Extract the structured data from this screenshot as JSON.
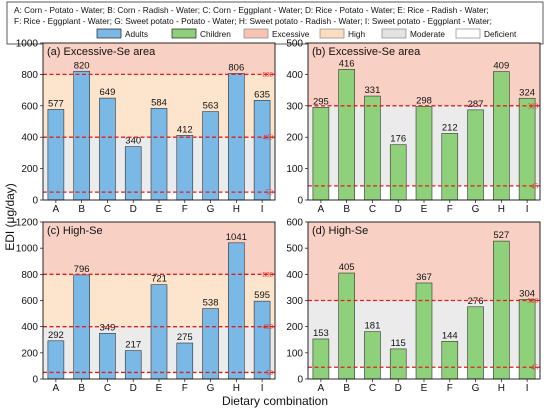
{
  "legend": {
    "combos_lines": [
      "A: Corn - Potato - Water; B: Corn - Radish - Water; C: Corn - Eggplant - Water; D: Rice - Potato - Water; E: Rice - Radish - Water;",
      "F: Rice  - Eggplant  - Water; G: Sweet potato - Potato - Water; H: Sweet potato - Radish - Water; I: Sweet potato - Eggplant - Water;"
    ],
    "items": [
      {
        "label": "Adults",
        "color": "#7ab8e6",
        "border": "#222"
      },
      {
        "label": "Children",
        "color": "#8fd07a",
        "border": "#222"
      },
      {
        "label": "Excessive",
        "color": "#f7c4b4",
        "border": "#888"
      },
      {
        "label": "High",
        "color": "#fbdcbf",
        "border": "#888"
      },
      {
        "label": "Moderate",
        "color": "#e3e3e3",
        "border": "#888"
      },
      {
        "label": "Deficient",
        "color": "#ffffff",
        "border": "#888"
      }
    ]
  },
  "colors": {
    "adults": "#7ab8e6",
    "children": "#8fd07a",
    "excessive": "#f8d0c4",
    "high": "#fde4cc",
    "moderate": "#ebebeb",
    "refline": "#e02020"
  },
  "chart_data": [
    {
      "type": "bar",
      "title": "(a) Excessive-Se area",
      "group": "Adults",
      "categories": [
        "A",
        "B",
        "C",
        "D",
        "E",
        "F",
        "G",
        "H",
        "I"
      ],
      "values": [
        577,
        820,
        649,
        340,
        584,
        412,
        563,
        806,
        635
      ],
      "ylim": [
        0,
        1000
      ],
      "yticks": [
        "0",
        "200",
        "400",
        "600",
        "800",
        "1000"
      ],
      "ref_lines": [
        50,
        400,
        800
      ],
      "ref_labels": [
        "50",
        "400",
        "800"
      ]
    },
    {
      "type": "bar",
      "title": "(b) Excessive-Se area",
      "group": "Children",
      "categories": [
        "A",
        "B",
        "C",
        "D",
        "E",
        "F",
        "G",
        "H",
        "I"
      ],
      "values": [
        295,
        416,
        331,
        176,
        298,
        212,
        287,
        409,
        324
      ],
      "ylim": [
        0,
        500
      ],
      "yticks": [
        "0",
        "100",
        "200",
        "300",
        "400",
        "500"
      ],
      "ref_lines": [
        45,
        300
      ],
      "ref_labels": [
        "45",
        "300"
      ]
    },
    {
      "type": "bar",
      "title": "(c) High-Se",
      "group": "Adults",
      "categories": [
        "A",
        "B",
        "C",
        "D",
        "E",
        "F",
        "G",
        "H",
        "I"
      ],
      "values": [
        292,
        796,
        349,
        217,
        721,
        275,
        538,
        1041,
        595
      ],
      "ylim": [
        0,
        1200
      ],
      "yticks": [
        "0",
        "200",
        "400",
        "600",
        "800",
        "1000",
        "1200"
      ],
      "ref_lines": [
        50,
        400,
        800
      ],
      "ref_labels": [
        "50",
        "400",
        "800"
      ]
    },
    {
      "type": "bar",
      "title": "(d) High-Se",
      "group": "Children",
      "categories": [
        "A",
        "B",
        "C",
        "D",
        "E",
        "F",
        "G",
        "H",
        "I"
      ],
      "values": [
        153,
        405,
        181,
        115,
        367,
        144,
        276,
        527,
        304
      ],
      "ylim": [
        0,
        600
      ],
      "yticks": [
        "0",
        "100",
        "200",
        "300",
        "400",
        "500",
        "600"
      ],
      "ref_lines": [
        45,
        300
      ],
      "ref_labels": [
        "45",
        "300"
      ]
    }
  ],
  "axes": {
    "ylabel": "EDI (μg/day)",
    "xlabel": "Dietary combination"
  }
}
